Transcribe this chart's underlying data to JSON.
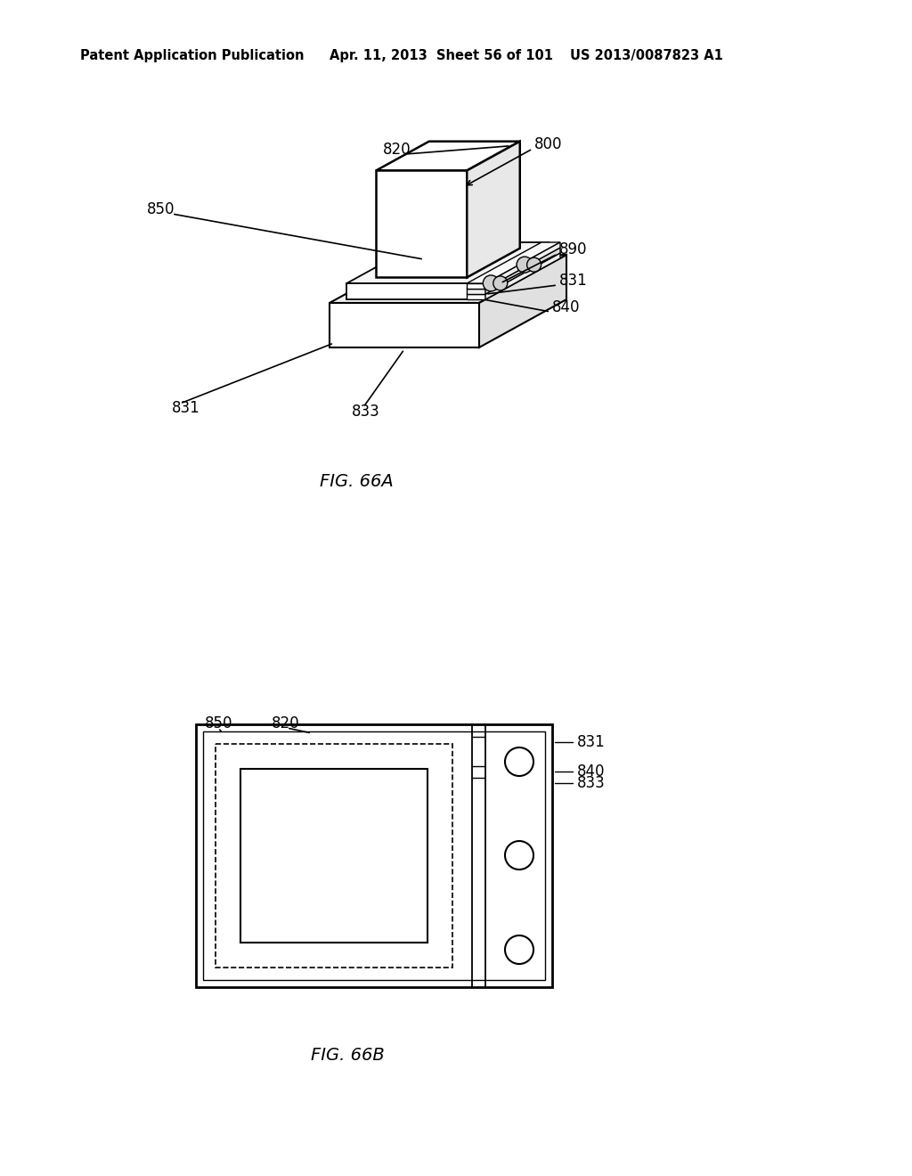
{
  "bg_color": "#ffffff",
  "header_left": "Patent Application Publication",
  "header_mid": "Apr. 11, 2013  Sheet 56 of 101",
  "header_right": "US 2013/0087823 A1",
  "fig_a_caption": "FIG. 66A",
  "fig_b_caption": "FIG. 66B",
  "line_color": "#000000",
  "text_color": "#000000"
}
